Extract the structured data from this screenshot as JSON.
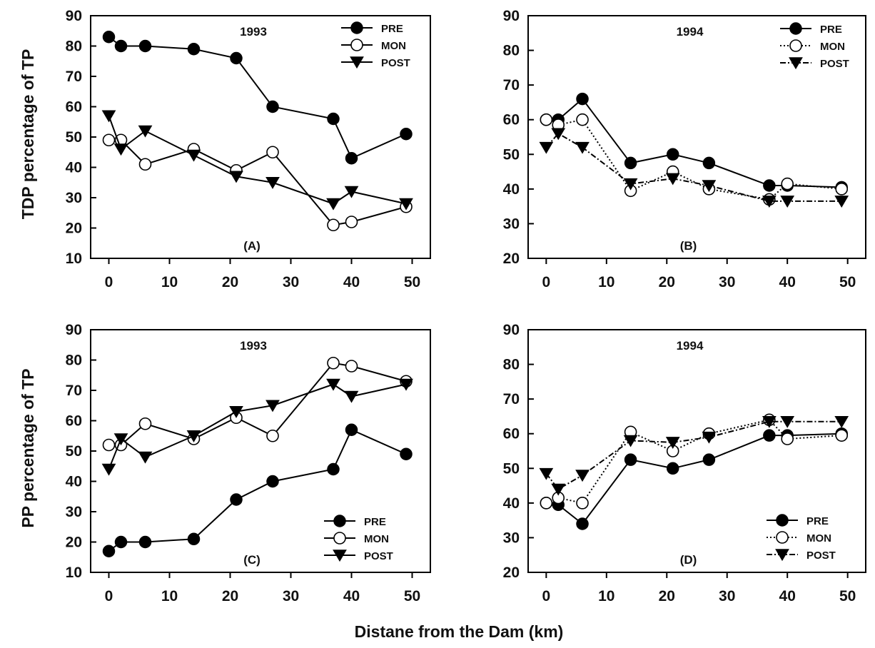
{
  "figure": {
    "ylabel_top": "TDP percentage of TP",
    "ylabel_bottom": "PP percentage of TP",
    "xlabel": "Distane from the Dam (km)"
  },
  "chart_data": [
    {
      "type": "line",
      "title": "1993",
      "panel_label": "(A)",
      "ylim": [
        10,
        90
      ],
      "yticks": [
        10,
        20,
        30,
        40,
        50,
        60,
        70,
        80,
        90
      ],
      "xlim": [
        -3,
        53
      ],
      "xticks": [
        0,
        10,
        20,
        30,
        40,
        50
      ],
      "legend_position": "top-right",
      "series": [
        {
          "name": "PRE",
          "marker": "filled-circle",
          "dash": "solid",
          "x": [
            0,
            2,
            6,
            14,
            21,
            27,
            37,
            40,
            49
          ],
          "y": [
            83,
            80,
            80,
            79,
            76,
            60,
            56,
            43,
            51
          ]
        },
        {
          "name": "MON",
          "marker": "open-circle",
          "dash": "solid",
          "x": [
            0,
            2,
            6,
            14,
            21,
            27,
            37,
            40,
            49
          ],
          "y": [
            49,
            49,
            41,
            46,
            39,
            45,
            21,
            22,
            27
          ]
        },
        {
          "name": "POST",
          "marker": "triangle-down",
          "dash": "solid",
          "x": [
            0,
            2,
            6,
            14,
            21,
            27,
            37,
            40,
            49
          ],
          "y": [
            57,
            46,
            52,
            44,
            37,
            35,
            28,
            32,
            28
          ]
        }
      ]
    },
    {
      "type": "line",
      "title": "1994",
      "panel_label": "(B)",
      "ylim": [
        20,
        90
      ],
      "yticks": [
        20,
        30,
        40,
        50,
        60,
        70,
        80,
        90
      ],
      "xlim": [
        -3,
        53
      ],
      "xticks": [
        0,
        10,
        20,
        30,
        40,
        50
      ],
      "legend_position": "top-right",
      "series": [
        {
          "name": "PRE",
          "marker": "filled-circle",
          "dash": "solid",
          "x": [
            0,
            2,
            6,
            14,
            21,
            27,
            37,
            40,
            49
          ],
          "y": [
            60,
            60,
            66,
            47.5,
            50,
            47.5,
            41,
            41,
            40.5
          ]
        },
        {
          "name": "MON",
          "marker": "open-circle",
          "dash": "dotted",
          "x": [
            0,
            2,
            6,
            14,
            21,
            27,
            37,
            40,
            49
          ],
          "y": [
            60,
            58.5,
            60,
            39.5,
            45,
            40,
            37,
            41.5,
            40
          ]
        },
        {
          "name": "POST",
          "marker": "triangle-down",
          "dash": "dashdot",
          "x": [
            0,
            2,
            6,
            14,
            21,
            27,
            37,
            40,
            49
          ],
          "y": [
            52,
            56,
            52,
            41.5,
            43,
            41,
            36.5,
            36.5,
            36.5
          ]
        }
      ]
    },
    {
      "type": "line",
      "title": "1993",
      "panel_label": "(C)",
      "ylim": [
        10,
        90
      ],
      "yticks": [
        10,
        20,
        30,
        40,
        50,
        60,
        70,
        80,
        90
      ],
      "xlim": [
        -3,
        53
      ],
      "xticks": [
        0,
        10,
        20,
        30,
        40,
        50
      ],
      "legend_position": "bottom-right",
      "series": [
        {
          "name": "PRE",
          "marker": "filled-circle",
          "dash": "solid",
          "x": [
            0,
            2,
            6,
            14,
            21,
            27,
            37,
            40,
            49
          ],
          "y": [
            17,
            20,
            20,
            21,
            34,
            40,
            44,
            57,
            49
          ]
        },
        {
          "name": "MON",
          "marker": "open-circle",
          "dash": "solid",
          "x": [
            0,
            2,
            6,
            14,
            21,
            27,
            37,
            40,
            49
          ],
          "y": [
            52,
            52,
            59,
            54,
            61,
            55,
            79,
            78,
            73
          ]
        },
        {
          "name": "POST",
          "marker": "triangle-down",
          "dash": "solid",
          "x": [
            0,
            2,
            6,
            14,
            21,
            27,
            37,
            40,
            49
          ],
          "y": [
            44,
            54,
            48,
            55,
            63,
            65,
            72,
            68,
            72
          ]
        }
      ]
    },
    {
      "type": "line",
      "title": "1994",
      "panel_label": "(D)",
      "ylim": [
        20,
        90
      ],
      "yticks": [
        20,
        30,
        40,
        50,
        60,
        70,
        80,
        90
      ],
      "xlim": [
        -3,
        53
      ],
      "xticks": [
        0,
        10,
        20,
        30,
        40,
        50
      ],
      "legend_position": "bottom-right",
      "series": [
        {
          "name": "PRE",
          "marker": "filled-circle",
          "dash": "solid",
          "x": [
            0,
            2,
            6,
            14,
            21,
            27,
            37,
            40,
            49
          ],
          "y": [
            40,
            39.5,
            34,
            52.5,
            50,
            52.5,
            59.5,
            59.5,
            60
          ]
        },
        {
          "name": "MON",
          "marker": "open-circle",
          "dash": "dotted",
          "x": [
            0,
            2,
            6,
            14,
            21,
            27,
            37,
            40,
            49
          ],
          "y": [
            40,
            41.5,
            40,
            60.5,
            55,
            60,
            64,
            58.5,
            59.5
          ]
        },
        {
          "name": "POST",
          "marker": "triangle-down",
          "dash": "dashdot",
          "x": [
            0,
            2,
            6,
            14,
            21,
            27,
            37,
            40,
            49
          ],
          "y": [
            48.5,
            44,
            48,
            58,
            57.5,
            59,
            63.5,
            63.5,
            63.5
          ]
        }
      ]
    }
  ]
}
